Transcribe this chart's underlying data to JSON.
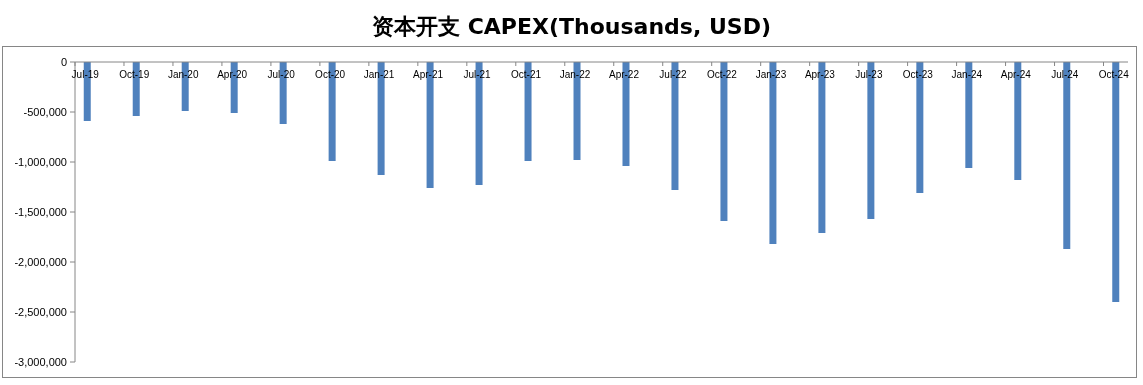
{
  "chart_data": {
    "type": "bar",
    "title": "资本开支 CAPEX(Thousands, USD)",
    "categories": [
      "Jul-19",
      "Oct-19",
      "Jan-20",
      "Apr-20",
      "Jul-20",
      "Oct-20",
      "Jan-21",
      "Apr-21",
      "Jul-21",
      "Oct-21",
      "Jan-22",
      "Apr-22",
      "Jul-22",
      "Oct-22",
      "Jan-23",
      "Apr-23",
      "Jul-23",
      "Oct-23",
      "Jan-24",
      "Apr-24",
      "Jul-24",
      "Oct-24"
    ],
    "values": [
      -590000,
      -540000,
      -490000,
      -510000,
      -620000,
      -990000,
      -1130000,
      -1260000,
      -1230000,
      -990000,
      -980000,
      -1040000,
      -1280000,
      -1590000,
      -1820000,
      -1710000,
      -1570000,
      -1310000,
      -1060000,
      -1180000,
      -1870000,
      -2400000
    ],
    "color": "#4f81bd",
    "ylim": [
      -3000000,
      0
    ],
    "yticks": [
      {
        "value": -3000000,
        "label": "-3,000,000"
      },
      {
        "value": -2500000,
        "label": "-2,500,000"
      },
      {
        "value": -2000000,
        "label": "-2,000,000"
      },
      {
        "value": -1500000,
        "label": "-1,500,000"
      },
      {
        "value": -1000000,
        "label": "-1,000,000"
      },
      {
        "value": -500000,
        "label": "-500,000"
      },
      0
    ]
  }
}
